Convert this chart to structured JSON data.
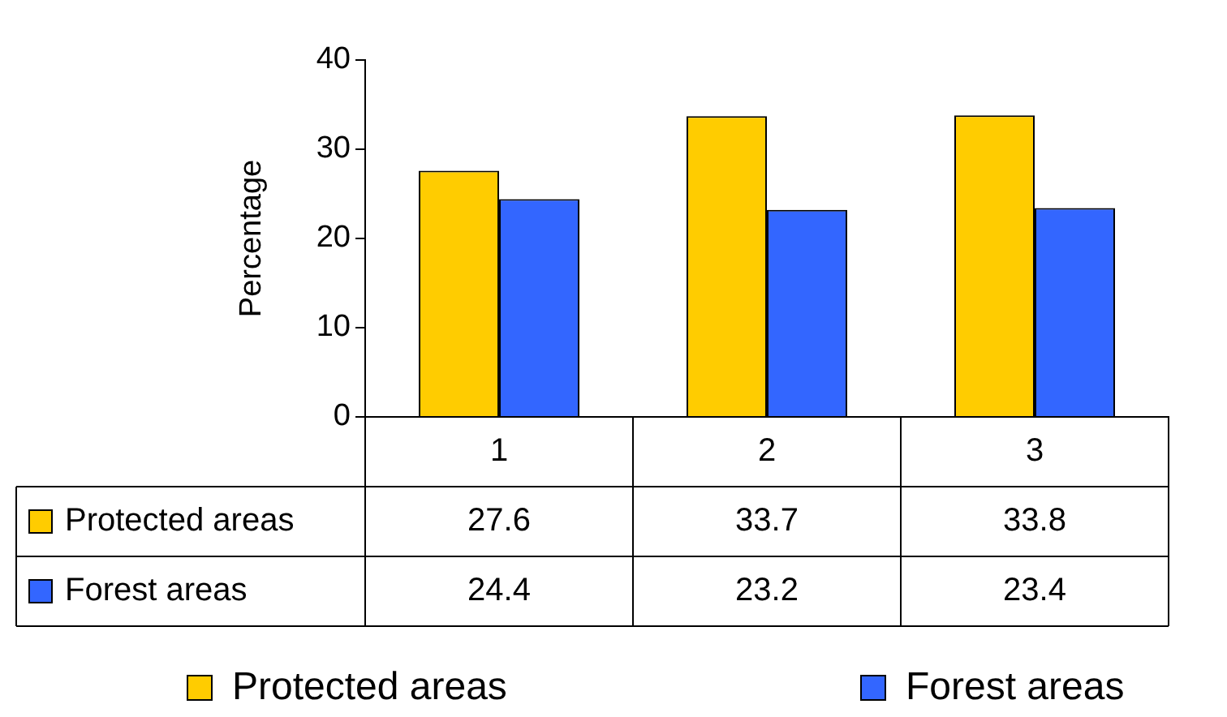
{
  "chart_data": {
    "type": "bar",
    "ylabel": "Percentage",
    "categories": [
      "1",
      "2",
      "3"
    ],
    "series": [
      {
        "name": "Protected areas",
        "color": "#ffcc00",
        "values": [
          27.6,
          33.7,
          33.8
        ]
      },
      {
        "name": "Forest areas",
        "color": "#3366ff",
        "values": [
          24.4,
          23.2,
          23.4
        ]
      }
    ],
    "ylim": [
      0,
      40
    ],
    "yticks": [
      0,
      10,
      20,
      30,
      40
    ],
    "data_labels": true,
    "legend": "bottom"
  }
}
